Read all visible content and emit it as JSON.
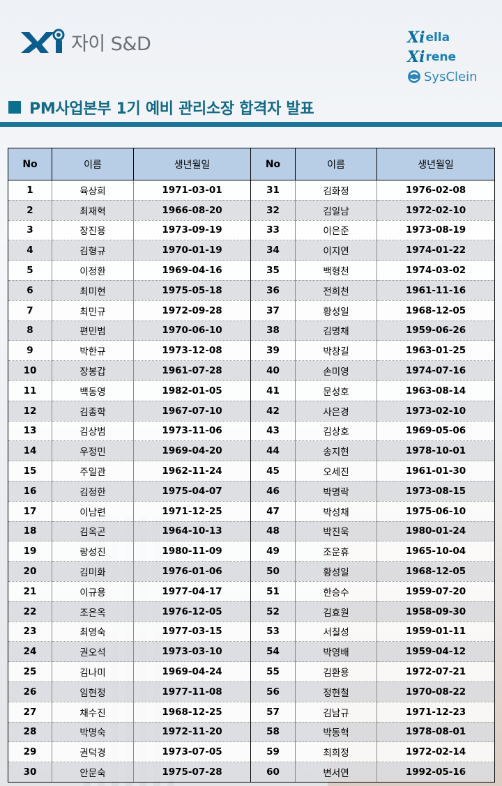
{
  "header": {
    "logo_text": "자이 S&D",
    "brands": [
      {
        "mark": "Xi",
        "name": "ella"
      },
      {
        "mark": "Xi",
        "name": "rene"
      }
    ],
    "sysclein": "SysClein",
    "title": "PM사업본부 1기 예비 관리소장 합격자 발표"
  },
  "table": {
    "headers": [
      "No",
      "이름",
      "생년월일",
      "No",
      "이름",
      "생년월일"
    ],
    "rows": [
      [
        [
          "1",
          "육상희",
          "1971-03-01"
        ],
        [
          "31",
          "김화정",
          "1976-02-08"
        ]
      ],
      [
        [
          "2",
          "최재혁",
          "1966-08-20"
        ],
        [
          "32",
          "김일남",
          "1972-02-10"
        ]
      ],
      [
        [
          "3",
          "장진용",
          "1973-09-19"
        ],
        [
          "33",
          "이은준",
          "1973-08-19"
        ]
      ],
      [
        [
          "4",
          "김형규",
          "1970-01-19"
        ],
        [
          "34",
          "이지연",
          "1974-01-22"
        ]
      ],
      [
        [
          "5",
          "이정환",
          "1969-04-16"
        ],
        [
          "35",
          "백형천",
          "1974-03-02"
        ]
      ],
      [
        [
          "6",
          "최미현",
          "1975-05-18"
        ],
        [
          "36",
          "전희천",
          "1961-11-16"
        ]
      ],
      [
        [
          "7",
          "최민규",
          "1972-09-28"
        ],
        [
          "37",
          "황성일",
          "1968-12-05"
        ]
      ],
      [
        [
          "8",
          "편민범",
          "1970-06-10"
        ],
        [
          "38",
          "김명채",
          "1959-06-26"
        ]
      ],
      [
        [
          "9",
          "박한규",
          "1973-12-08"
        ],
        [
          "39",
          "박창길",
          "1963-01-25"
        ]
      ],
      [
        [
          "10",
          "장봉갑",
          "1961-07-28"
        ],
        [
          "40",
          "손미영",
          "1974-07-16"
        ]
      ],
      [
        [
          "11",
          "백동영",
          "1982-01-05"
        ],
        [
          "41",
          "문성호",
          "1963-08-14"
        ]
      ],
      [
        [
          "12",
          "김종학",
          "1967-07-10"
        ],
        [
          "42",
          "사은경",
          "1973-02-10"
        ]
      ],
      [
        [
          "13",
          "김상범",
          "1973-11-06"
        ],
        [
          "43",
          "김상호",
          "1969-05-06"
        ]
      ],
      [
        [
          "14",
          "우정민",
          "1969-04-20"
        ],
        [
          "44",
          "송지현",
          "1978-10-01"
        ]
      ],
      [
        [
          "15",
          "주일관",
          "1962-11-24"
        ],
        [
          "45",
          "오세진",
          "1961-01-30"
        ]
      ],
      [
        [
          "16",
          "김정한",
          "1975-04-07"
        ],
        [
          "46",
          "박명락",
          "1973-08-15"
        ]
      ],
      [
        [
          "17",
          "이남련",
          "1971-12-25"
        ],
        [
          "47",
          "박성채",
          "1975-06-10"
        ]
      ],
      [
        [
          "18",
          "김옥곤",
          "1964-10-13"
        ],
        [
          "48",
          "박진욱",
          "1980-01-24"
        ]
      ],
      [
        [
          "19",
          "랑성진",
          "1980-11-09"
        ],
        [
          "49",
          "조운휴",
          "1965-10-04"
        ]
      ],
      [
        [
          "20",
          "김미화",
          "1976-01-06"
        ],
        [
          "50",
          "황성일",
          "1968-12-05"
        ]
      ],
      [
        [
          "21",
          "이규용",
          "1977-04-17"
        ],
        [
          "51",
          "한승수",
          "1959-07-20"
        ]
      ],
      [
        [
          "22",
          "조은옥",
          "1976-12-05"
        ],
        [
          "52",
          "김효원",
          "1958-09-30"
        ]
      ],
      [
        [
          "23",
          "최영숙",
          "1977-03-15"
        ],
        [
          "53",
          "서칠성",
          "1959-01-11"
        ]
      ],
      [
        [
          "24",
          "권오석",
          "1973-03-10"
        ],
        [
          "54",
          "박영배",
          "1959-04-12"
        ]
      ],
      [
        [
          "25",
          "김나미",
          "1969-04-24"
        ],
        [
          "55",
          "김환용",
          "1972-07-21"
        ]
      ],
      [
        [
          "26",
          "임현정",
          "1977-11-08"
        ],
        [
          "56",
          "정현철",
          "1970-08-22"
        ]
      ],
      [
        [
          "27",
          "채수진",
          "1968-12-25"
        ],
        [
          "57",
          "김남규",
          "1971-12-23"
        ]
      ],
      [
        [
          "28",
          "박명숙",
          "1972-11-20"
        ],
        [
          "58",
          "박동혁",
          "1978-08-01"
        ]
      ],
      [
        [
          "29",
          "권덕경",
          "1973-07-05"
        ],
        [
          "59",
          "최희정",
          "1972-02-14"
        ]
      ],
      [
        [
          "30",
          "안문숙",
          "1975-07-28"
        ],
        [
          "60",
          "변서연",
          "1992-05-16"
        ]
      ]
    ]
  },
  "colors": {
    "accent": "#1c7497",
    "header_cell": "#b8cde6",
    "title": "#136a85"
  }
}
